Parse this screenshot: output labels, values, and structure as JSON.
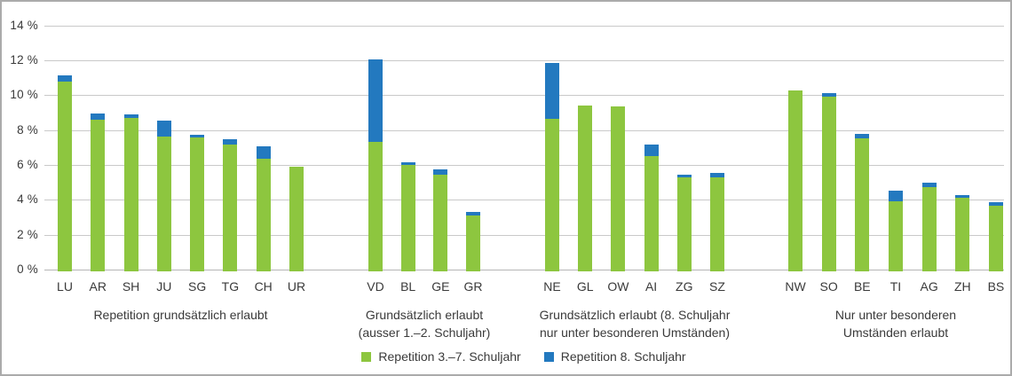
{
  "chart_data": {
    "type": "bar",
    "stacked": true,
    "unit": "%",
    "title": "",
    "xlabel": "",
    "ylabel": "",
    "y_axis": {
      "min": 0,
      "max": 14,
      "step": 2,
      "tick_labels": [
        "0 %",
        "2 %",
        "4 %",
        "6 %",
        "8 %",
        "10 %",
        "12 %",
        "14 %"
      ]
    },
    "grid": "horizontal",
    "legend_position": "bottom-center",
    "series": [
      {
        "name": "Repetition 3.–7. Schuljahr",
        "color": "#8dc63f"
      },
      {
        "name": "Repetition 8. Schuljahr",
        "color": "#2379bf"
      }
    ],
    "groups": [
      {
        "caption": "Repetition grundsätzlich erlaubt",
        "bars": [
          {
            "label": "LU",
            "values": [
              10.9,
              0.35
            ]
          },
          {
            "label": "AR",
            "values": [
              8.7,
              0.35
            ]
          },
          {
            "label": "SH",
            "values": [
              8.8,
              0.2
            ]
          },
          {
            "label": "JU",
            "values": [
              7.75,
              0.9
            ]
          },
          {
            "label": "SG",
            "values": [
              7.65,
              0.15
            ]
          },
          {
            "label": "TG",
            "values": [
              7.25,
              0.35
            ]
          },
          {
            "label": "CH",
            "values": [
              6.45,
              0.7
            ]
          },
          {
            "label": "UR",
            "values": [
              6.0,
              0
            ]
          }
        ]
      },
      {
        "caption": "Grundsätzlich erlaubt\n(ausser 1.–2. Schuljahr)",
        "bars": [
          {
            "label": "VD",
            "values": [
              7.4,
              4.75
            ]
          },
          {
            "label": "BL",
            "values": [
              6.1,
              0.15
            ]
          },
          {
            "label": "GE",
            "values": [
              5.55,
              0.3
            ]
          },
          {
            "label": "GR",
            "values": [
              3.2,
              0.2
            ]
          }
        ]
      },
      {
        "caption": "Grundsätzlich erlaubt (8. Schuljahr\nnur unter besonderen Umständen)",
        "bars": [
          {
            "label": "NE",
            "values": [
              8.75,
              3.2
            ]
          },
          {
            "label": "GL",
            "values": [
              9.5,
              0
            ]
          },
          {
            "label": "OW",
            "values": [
              9.45,
              0
            ]
          },
          {
            "label": "AI",
            "values": [
              6.6,
              0.65
            ]
          },
          {
            "label": "ZG",
            "values": [
              5.4,
              0.15
            ]
          },
          {
            "label": "SZ",
            "values": [
              5.4,
              0.25
            ]
          }
        ]
      },
      {
        "caption": "Nur unter besonderen\nUmständen erlaubt",
        "bars": [
          {
            "label": "NW",
            "values": [
              10.35,
              0
            ]
          },
          {
            "label": "SO",
            "values": [
              10.0,
              0.2
            ]
          },
          {
            "label": "BE",
            "values": [
              7.6,
              0.3
            ]
          },
          {
            "label": "TI",
            "values": [
              4.0,
              0.65
            ]
          },
          {
            "label": "AG",
            "values": [
              4.85,
              0.25
            ]
          },
          {
            "label": "ZH",
            "values": [
              4.2,
              0.2
            ]
          },
          {
            "label": "BS",
            "values": [
              3.75,
              0.2
            ]
          }
        ]
      }
    ],
    "colors": {
      "green": "#8dc63f",
      "blue": "#2379bf",
      "gridline": "#c9c9c9",
      "text": "#3a3a3a",
      "frame_border": "#ababab"
    }
  }
}
